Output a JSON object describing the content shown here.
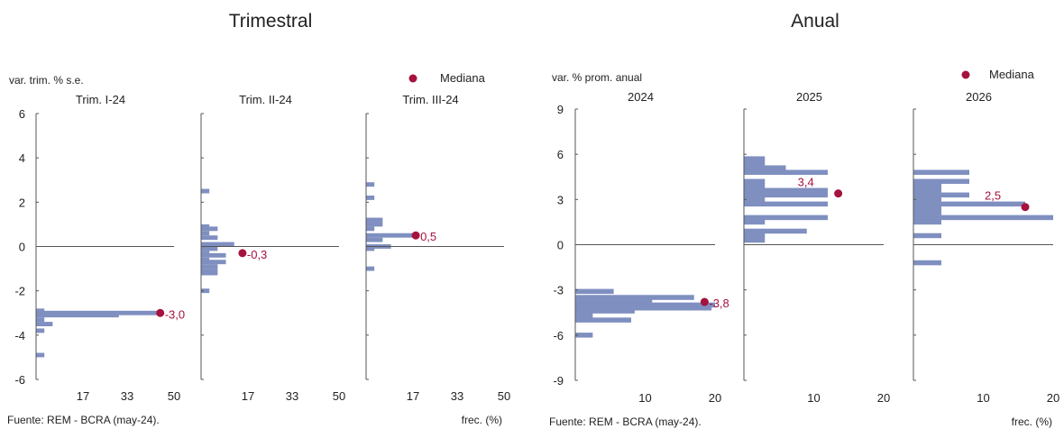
{
  "chart_data": [
    {
      "type": "histogram-panels",
      "group_title": "Trimestral",
      "ylabel": "var. trim. % s.e.",
      "ylim": [
        -6,
        6
      ],
      "yticks": [
        6,
        4,
        2,
        0,
        -2,
        -4,
        -6
      ],
      "ytick_labels": [
        "6",
        "4",
        "2",
        "0",
        "-2",
        "-4",
        "-6"
      ],
      "xlim": [
        0,
        50
      ],
      "xticks": [
        17,
        33,
        50
      ],
      "xtick_labels": [
        "17",
        "33",
        "50"
      ],
      "xlabel": "frec. (%)",
      "source": "Fuente: REM - BCRA (may-24).",
      "legend_label": "Mediana",
      "bar_height": 0.2,
      "panels": [
        {
          "title": "Trim. I-24",
          "bars": [
            [
              -2.9,
              3
            ],
            [
              -3.1,
              30
            ],
            [
              -3.0,
              46
            ],
            [
              -3.3,
              3
            ],
            [
              -3.5,
              6
            ],
            [
              -3.8,
              3
            ],
            [
              -4.9,
              3
            ]
          ],
          "median": -3.0,
          "median_label": "-3,0",
          "median_x": 45
        },
        {
          "title": "Trim. II-24",
          "bars": [
            [
              2.5,
              3
            ],
            [
              0.9,
              3
            ],
            [
              0.8,
              6
            ],
            [
              0.6,
              3
            ],
            [
              0.4,
              6
            ],
            [
              0.1,
              12
            ],
            [
              -0.1,
              6
            ],
            [
              -0.3,
              3
            ],
            [
              -0.4,
              9
            ],
            [
              -0.6,
              3
            ],
            [
              -0.7,
              9
            ],
            [
              -0.9,
              6
            ],
            [
              -1.1,
              6
            ],
            [
              -1.2,
              6
            ],
            [
              -2.0,
              3
            ]
          ],
          "median": -0.3,
          "median_label": "-0,3",
          "median_x": 15
        },
        {
          "title": "Trim. III-24",
          "bars": [
            [
              2.8,
              3
            ],
            [
              2.2,
              3
            ],
            [
              1.2,
              6
            ],
            [
              1.0,
              6
            ],
            [
              0.8,
              3
            ],
            [
              0.5,
              18
            ],
            [
              0.3,
              6
            ],
            [
              0.0,
              9
            ],
            [
              -0.1,
              3
            ],
            [
              -1.0,
              3
            ]
          ],
          "median": 0.5,
          "median_label": "0,5",
          "median_x": 18
        }
      ]
    },
    {
      "type": "histogram-panels",
      "group_title": "Anual",
      "ylabel": "var. % prom. anual",
      "ylim": [
        -9,
        9
      ],
      "yticks": [
        9,
        6,
        3,
        0,
        -3,
        -6,
        -9
      ],
      "ytick_labels": [
        "9",
        "6",
        "3",
        "0",
        "-3",
        "-6",
        "-9"
      ],
      "xlim": [
        0,
        20
      ],
      "xticks": [
        10,
        20
      ],
      "xtick_labels": [
        "10",
        "20"
      ],
      "xlabel": "frec. (%)",
      "source": "Fuente: REM - BCRA (may-24).",
      "legend_label": "Mediana",
      "bar_height": 0.33,
      "panels": [
        {
          "title": "2024",
          "bars": [
            [
              -3.1,
              5.5
            ],
            [
              -3.5,
              17
            ],
            [
              -3.8,
              11
            ],
            [
              -4.0,
              20
            ],
            [
              -4.2,
              19.5
            ],
            [
              -4.4,
              8.5
            ],
            [
              -4.7,
              2.5
            ],
            [
              -5.0,
              8
            ],
            [
              -6.0,
              2.5
            ]
          ],
          "median": -3.8,
          "median_label": "-3,8",
          "median_x": 18.5
        },
        {
          "title": "2025",
          "bars": [
            [
              5.7,
              3
            ],
            [
              5.4,
              3
            ],
            [
              5.1,
              6
            ],
            [
              4.8,
              12
            ],
            [
              4.2,
              3
            ],
            [
              3.9,
              3
            ],
            [
              3.6,
              12
            ],
            [
              3.3,
              12
            ],
            [
              3.0,
              3
            ],
            [
              2.7,
              12
            ],
            [
              1.8,
              12
            ],
            [
              1.5,
              3
            ],
            [
              0.9,
              9
            ],
            [
              0.6,
              3
            ],
            [
              0.3,
              3
            ]
          ],
          "median": 3.4,
          "median_label": "3,4",
          "median_x": 13.5
        },
        {
          "title": "2026",
          "bars": [
            [
              4.8,
              8
            ],
            [
              4.2,
              8
            ],
            [
              3.9,
              4
            ],
            [
              3.6,
              4
            ],
            [
              3.3,
              8
            ],
            [
              3.0,
              4
            ],
            [
              2.7,
              16
            ],
            [
              2.4,
              4
            ],
            [
              2.1,
              4
            ],
            [
              1.8,
              20
            ],
            [
              1.5,
              4
            ],
            [
              0.6,
              4
            ],
            [
              -1.2,
              4
            ]
          ],
          "median": 2.5,
          "median_label": "2,5",
          "median_x": 16
        }
      ]
    }
  ],
  "colors": {
    "bar": "#7F8FC0",
    "median": "#A5123D",
    "axis": "#555555",
    "text": "#222222"
  }
}
